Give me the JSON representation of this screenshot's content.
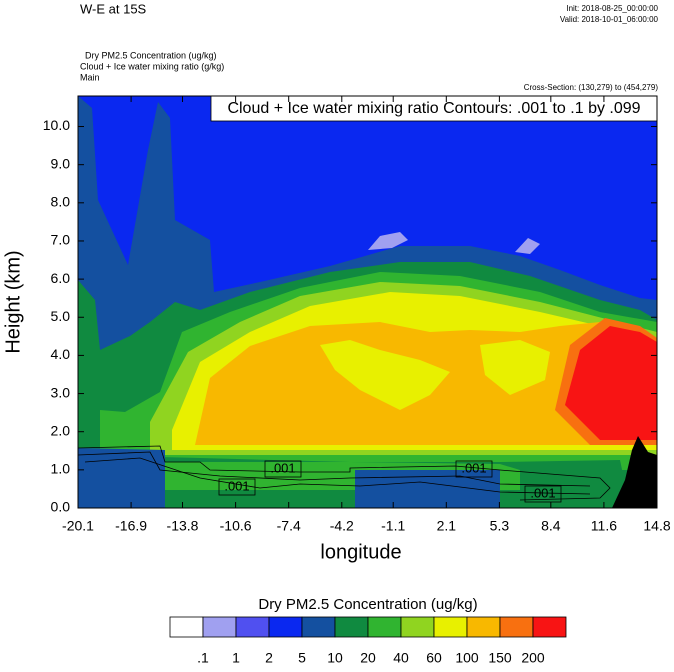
{
  "chart_data": {
    "type": "contour",
    "title": "W-E at 15S",
    "init": "Init: 2018-08-25_00:00:00",
    "valid": "Valid: 2018-10-01_06:00:00",
    "fields": [
      "Dry PM2.5 Concentration   (ug/kg)",
      "Cloud + Ice water mixing ratio   (g/kg)",
      "Main"
    ],
    "cross_section": "Cross-Section: (130,279) to (454,279)",
    "contour_info": "Cloud + Ice water mixing ratio Contours: .001 to .1 by .099",
    "contour_labels": [
      ".001",
      ".001",
      ".001",
      ".001"
    ],
    "xlabel": "longitude",
    "ylabel": "Height (km)",
    "xlim": [
      -20.1,
      14.8
    ],
    "xticks": [
      -20.1,
      -16.9,
      -13.8,
      -10.6,
      -7.4,
      -4.2,
      -1.1,
      2.1,
      5.3,
      8.4,
      11.6,
      14.8
    ],
    "ylim": [
      0,
      10.8
    ],
    "yticks": [
      {
        "value": 0,
        "label": "0.0"
      },
      {
        "value": 1,
        "label": "1.0"
      },
      {
        "value": 2,
        "label": "2.0"
      },
      {
        "value": 3,
        "label": "3.0"
      },
      {
        "value": 4,
        "label": "4.0"
      },
      {
        "value": 5,
        "label": "5.0"
      },
      {
        "value": 6,
        "label": "6.0"
      },
      {
        "value": 7,
        "label": "7.0"
      },
      {
        "value": 8,
        "label": "8.0"
      },
      {
        "value": 9,
        "label": "9.0"
      },
      {
        "value": 10,
        "label": "10.0"
      }
    ],
    "colorbar": {
      "title": "Dry PM2.5 Concentration  (ug/kg)",
      "levels": [
        {
          "value": 0.1,
          "label": ".1"
        },
        1,
        2,
        5,
        10,
        20,
        40,
        60,
        100,
        150,
        200
      ],
      "colors": [
        "#ffffff",
        "#a0a0f0",
        "#5050f0",
        "#0a28f0",
        "#1450a0",
        "#108a40",
        "#30b430",
        "#90d420",
        "#e8f000",
        "#f8b800",
        "#f87010",
        "#f81414"
      ]
    }
  }
}
